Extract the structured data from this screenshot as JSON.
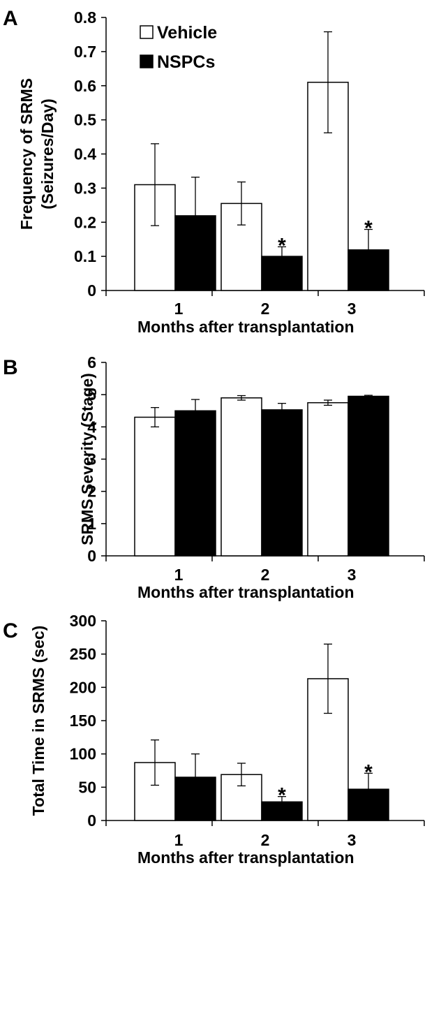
{
  "chart_data": [
    {
      "type": "bar",
      "panel": "A",
      "categories": [
        "1",
        "2",
        "3"
      ],
      "series": [
        {
          "name": "Vehicle",
          "color": "#ffffff",
          "values": [
            0.31,
            0.255,
            0.61
          ],
          "errors": [
            0.12,
            0.063,
            0.148
          ]
        },
        {
          "name": "NSPCs",
          "color": "#000000",
          "values": [
            0.219,
            0.1,
            0.119
          ],
          "errors": [
            0.113,
            0.028,
            0.06
          ]
        }
      ],
      "significance": [
        {
          "category": "2",
          "series": "NSPCs",
          "marker": "*"
        },
        {
          "category": "3",
          "series": "NSPCs",
          "marker": "*"
        }
      ],
      "xlabel": "Months after transplantation",
      "ylabel": [
        "Frequency of SRMS",
        "(Seizures/Day)"
      ],
      "ylim": [
        0,
        0.8
      ],
      "yticks": [
        "0",
        "0.1",
        "0.2",
        "0.3",
        "0.4",
        "0.5",
        "0.6",
        "0.7",
        "0.8"
      ],
      "legend": {
        "position": "top-left",
        "entries": [
          "Vehicle",
          "NSPCs"
        ]
      },
      "grid": false
    },
    {
      "type": "bar",
      "panel": "B",
      "categories": [
        "1",
        "2",
        "3"
      ],
      "series": [
        {
          "name": "Vehicle",
          "color": "#ffffff",
          "values": [
            4.3,
            4.9,
            4.75
          ],
          "errors": [
            0.3,
            0.07,
            0.08
          ]
        },
        {
          "name": "NSPCs",
          "color": "#000000",
          "values": [
            4.5,
            4.53,
            4.95
          ],
          "errors": [
            0.35,
            0.2,
            0.03
          ]
        }
      ],
      "xlabel": "Months after transplantation",
      "ylabel": [
        "SRMS Severity (Stage)"
      ],
      "ylim": [
        0,
        6
      ],
      "yticks": [
        "0",
        "1",
        "2",
        "3",
        "4",
        "5",
        "6"
      ],
      "grid": false
    },
    {
      "type": "bar",
      "panel": "C",
      "categories": [
        "1",
        "2",
        "3"
      ],
      "series": [
        {
          "name": "Vehicle",
          "color": "#ffffff",
          "values": [
            87,
            69,
            213
          ],
          "errors": [
            34,
            17,
            52
          ]
        },
        {
          "name": "NSPCs",
          "color": "#000000",
          "values": [
            65,
            28,
            47
          ],
          "errors": [
            35,
            8,
            24
          ]
        }
      ],
      "significance": [
        {
          "category": "2",
          "series": "NSPCs",
          "marker": "*"
        },
        {
          "category": "3",
          "series": "NSPCs",
          "marker": "*"
        }
      ],
      "xlabel": "Months after transplantation",
      "ylabel": [
        "Total Time in SRMS (sec)"
      ],
      "ylim": [
        0,
        300
      ],
      "yticks": [
        "0",
        "50",
        "100",
        "150",
        "200",
        "250",
        "300"
      ],
      "grid": false
    }
  ]
}
